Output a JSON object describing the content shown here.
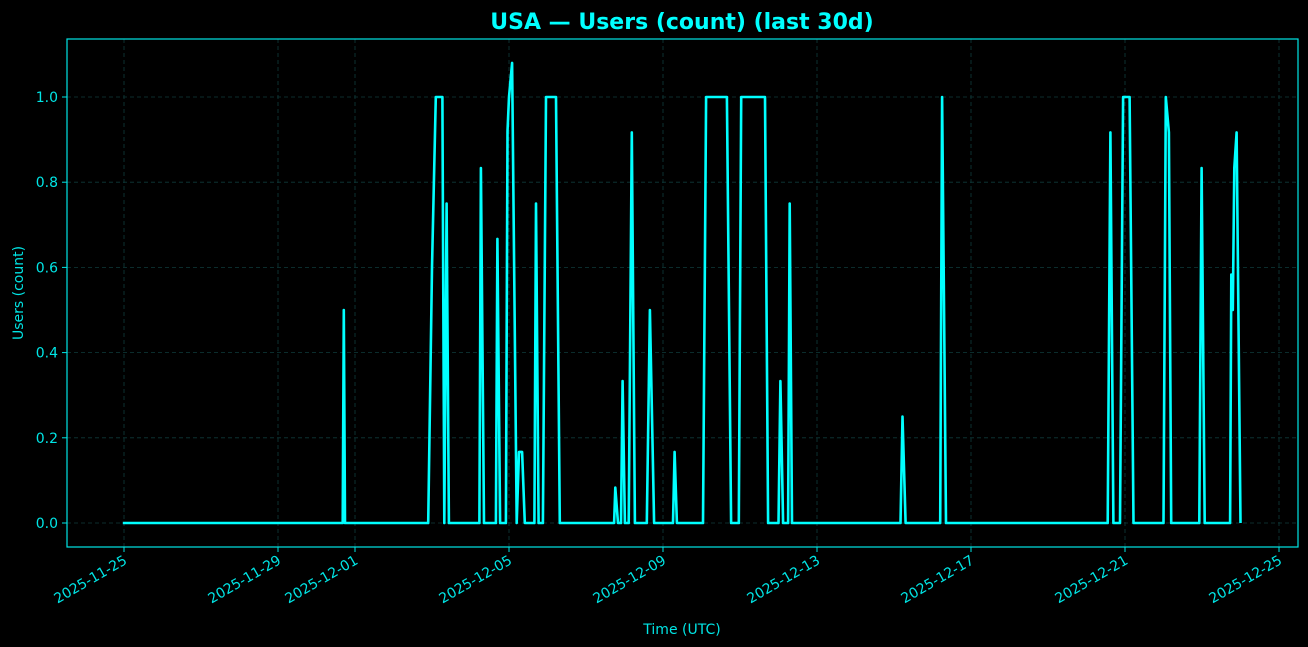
{
  "chart_data": {
    "type": "line",
    "title": "USA — Users (count) (last 30d)",
    "xlabel": "Time (UTC)",
    "ylabel": "Users (count)",
    "x_tick_labels": [
      "2025-11-25",
      "2025-11-29",
      "2025-12-01",
      "2025-12-05",
      "2025-12-09",
      "2025-12-13",
      "2025-12-17",
      "2025-12-21",
      "2025-12-25"
    ],
    "x_tick_days": [
      0,
      4,
      6,
      10,
      14,
      18,
      22,
      26,
      30
    ],
    "x_origin_date": "2025-11-25",
    "xlim_days": [
      -1.48,
      30.5
    ],
    "y_tick_labels": [
      "0.0",
      "0.2",
      "0.4",
      "0.6",
      "0.8",
      "1.0"
    ],
    "y_ticks": [
      0,
      0.2,
      0.4,
      0.6,
      0.8,
      1.0
    ],
    "ylim": [
      -0.055,
      1.135
    ],
    "grid": true,
    "legend": null,
    "colors": {
      "line": "#00ffff",
      "frame": "#00e5e5",
      "grid": "#0f3b3b",
      "background": "#000000",
      "text": "#00e5e5",
      "title": "#00ffff"
    },
    "series": [
      {
        "name": "Users (count)",
        "points_day_value": [
          [
            -0.03,
            0
          ],
          [
            5.68,
            0
          ],
          [
            5.71,
            0.5
          ],
          [
            5.74,
            0
          ],
          [
            7.9,
            0
          ],
          [
            8.0,
            0.6
          ],
          [
            8.1,
            1.0
          ],
          [
            8.27,
            1.0
          ],
          [
            8.32,
            0
          ],
          [
            8.38,
            0.75
          ],
          [
            8.44,
            0
          ],
          [
            9.23,
            0
          ],
          [
            9.27,
            0.833
          ],
          [
            9.35,
            0
          ],
          [
            9.66,
            0
          ],
          [
            9.7,
            0.667
          ],
          [
            9.77,
            0
          ],
          [
            9.92,
            0
          ],
          [
            9.96,
            0.92
          ],
          [
            10.0,
            1.0
          ],
          [
            10.08,
            1.08
          ],
          [
            10.2,
            0
          ],
          [
            10.26,
            0.167
          ],
          [
            10.34,
            0.167
          ],
          [
            10.41,
            0
          ],
          [
            10.66,
            0
          ],
          [
            10.7,
            0.75
          ],
          [
            10.77,
            0
          ],
          [
            10.88,
            0
          ],
          [
            10.96,
            1.0
          ],
          [
            11.22,
            1.0
          ],
          [
            11.32,
            0
          ],
          [
            12.73,
            0
          ],
          [
            12.76,
            0.083
          ],
          [
            12.83,
            0
          ],
          [
            12.91,
            0
          ],
          [
            12.95,
            0.333
          ],
          [
            13.01,
            0
          ],
          [
            13.11,
            0
          ],
          [
            13.19,
            0.917
          ],
          [
            13.27,
            0
          ],
          [
            13.58,
            0
          ],
          [
            13.66,
            0.5
          ],
          [
            13.77,
            0
          ],
          [
            14.26,
            0
          ],
          [
            14.3,
            0.167
          ],
          [
            14.36,
            0
          ],
          [
            15.04,
            0
          ],
          [
            15.12,
            1.0
          ],
          [
            15.66,
            1.0
          ],
          [
            15.77,
            0
          ],
          [
            15.97,
            0
          ],
          [
            16.03,
            1.0
          ],
          [
            16.65,
            1.0
          ],
          [
            16.73,
            0
          ],
          [
            17.0,
            0
          ],
          [
            17.05,
            0.333
          ],
          [
            17.12,
            0
          ],
          [
            17.25,
            0
          ],
          [
            17.29,
            0.75
          ],
          [
            17.35,
            0
          ],
          [
            20.17,
            0
          ],
          [
            20.22,
            0.25
          ],
          [
            20.3,
            0
          ],
          [
            21.2,
            0
          ],
          [
            21.25,
            1.0
          ],
          [
            21.35,
            0
          ],
          [
            25.55,
            0
          ],
          [
            25.62,
            0.917
          ],
          [
            25.7,
            0
          ],
          [
            25.87,
            0
          ],
          [
            25.95,
            1.0
          ],
          [
            26.12,
            1.0
          ],
          [
            26.22,
            0
          ],
          [
            27.0,
            0
          ],
          [
            27.06,
            1.0
          ],
          [
            27.14,
            0.917
          ],
          [
            27.2,
            0
          ],
          [
            27.93,
            0
          ],
          [
            27.99,
            0.833
          ],
          [
            28.07,
            0
          ],
          [
            28.73,
            0
          ],
          [
            28.76,
            0.583
          ],
          [
            28.8,
            0.5
          ],
          [
            28.84,
            0.833
          ],
          [
            28.9,
            0.917
          ],
          [
            29.0,
            0
          ]
        ]
      }
    ]
  }
}
